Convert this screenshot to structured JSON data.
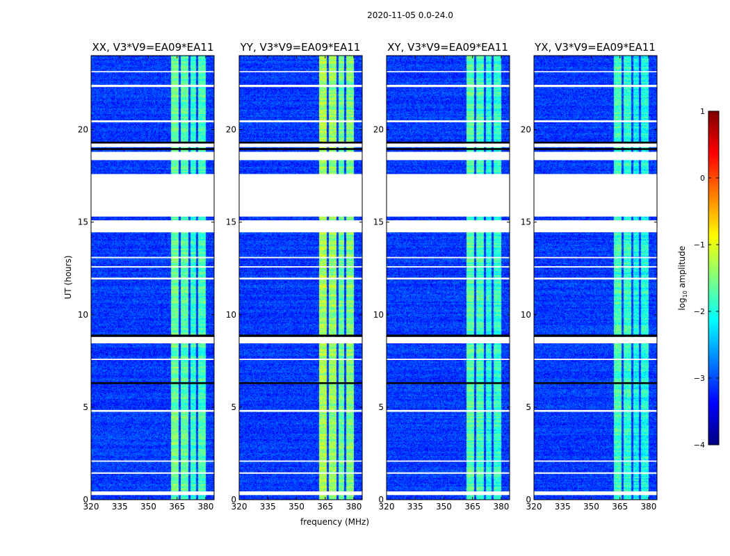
{
  "chart_data": {
    "type": "heatmap",
    "title": "2020-11-05 0.0-24.0",
    "xlabel": "frequency (MHz)",
    "ylabel": "UT (hours)",
    "xlim": [
      320,
      384.4
    ],
    "ylim": [
      0,
      24
    ],
    "xticks": [
      320,
      335,
      350,
      365,
      380
    ],
    "yticks": [
      0,
      5,
      10,
      15,
      20
    ],
    "panels": [
      {
        "title": "XX, V3*V9=EA09*EA11",
        "bright_boost": 0.0
      },
      {
        "title": "YY, V3*V9=EA09*EA11",
        "bright_boost": 0.3
      },
      {
        "title": "XY, V3*V9=EA09*EA11",
        "bright_boost": -0.1
      },
      {
        "title": "YX, V3*V9=EA09*EA11",
        "bright_boost": -0.2
      }
    ],
    "background_log_amp": -3.1,
    "rfi_bands_mhz": [
      [
        362,
        366,
        -1.6
      ],
      [
        367,
        371,
        -1.7
      ],
      [
        372,
        375,
        -1.9
      ],
      [
        376,
        380,
        -1.8
      ]
    ],
    "flagged_hours": [
      [
        15.3,
        17.6
      ],
      [
        18.35,
        18.8
      ],
      [
        19.05,
        19.25
      ],
      [
        14.45,
        15.1
      ],
      [
        8.45,
        8.8
      ],
      [
        0.25,
        0.45
      ],
      [
        1.4,
        1.48
      ],
      [
        2.05,
        2.12
      ],
      [
        4.75,
        4.85
      ],
      [
        7.55,
        7.62
      ],
      [
        11.9,
        12.0
      ],
      [
        12.55,
        12.62
      ],
      [
        13.05,
        13.12
      ],
      [
        20.4,
        20.5
      ],
      [
        22.3,
        22.42
      ],
      [
        23.1,
        23.16
      ]
    ],
    "dead_hours": [
      [
        8.8,
        8.92
      ],
      [
        19.25,
        19.35
      ],
      [
        6.25,
        6.35
      ],
      [
        18.9,
        19.0
      ]
    ],
    "colorbar": {
      "label": "log10 amplitude",
      "label_main": "log",
      "label_sub": "10",
      "label_rest": " amplitude",
      "range": [
        -4,
        1
      ],
      "ticks": [
        "1",
        "0",
        "−1",
        "−2",
        "−3",
        "−4"
      ],
      "tick_values": [
        1,
        0,
        -1,
        -2,
        -3,
        -4
      ],
      "colormap": "jet"
    }
  }
}
